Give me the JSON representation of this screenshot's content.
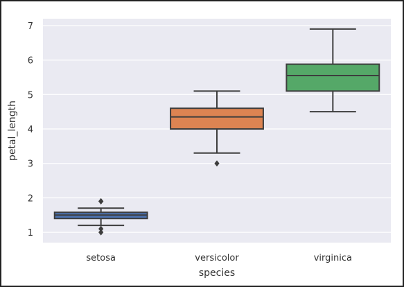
{
  "chart_data": {
    "type": "box",
    "xlabel": "species",
    "ylabel": "petal_length",
    "ylim": [
      0.7,
      7.2
    ],
    "yticks": [
      1,
      2,
      3,
      4,
      5,
      6,
      7
    ],
    "grid": true,
    "categories": [
      "setosa",
      "versicolor",
      "virginica"
    ],
    "boxes": [
      {
        "category": "setosa",
        "whisker_low": 1.2,
        "q1": 1.4,
        "median": 1.5,
        "q3": 1.58,
        "whisker_high": 1.7,
        "outliers": [
          1.9,
          1.9,
          1.0,
          1.1
        ],
        "color": "#4C72B0"
      },
      {
        "category": "versicolor",
        "whisker_low": 3.3,
        "q1": 4.0,
        "median": 4.35,
        "q3": 4.6,
        "whisker_high": 5.1,
        "outliers": [
          3.0
        ],
        "color": "#DD8452"
      },
      {
        "category": "virginica",
        "whisker_low": 4.5,
        "q1": 5.1,
        "median": 5.55,
        "q3": 5.88,
        "whisker_high": 6.9,
        "outliers": [],
        "color": "#55A868"
      }
    ],
    "colors": {
      "plot_bg": "#EAEAF2",
      "grid": "#FFFFFF",
      "line": "#3D3D3D"
    }
  }
}
